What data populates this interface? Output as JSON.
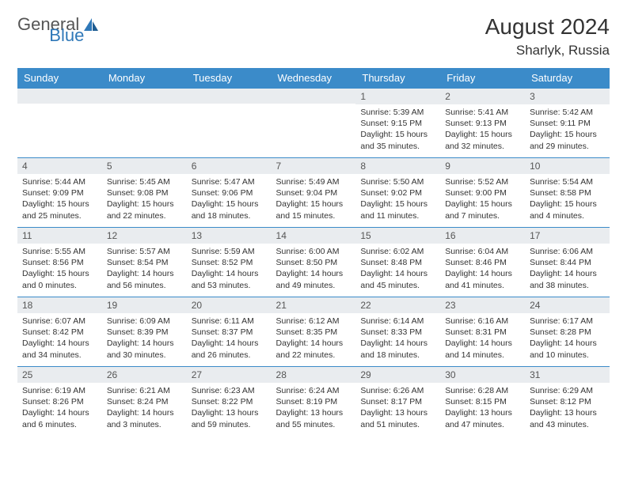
{
  "logo": {
    "text1": "General",
    "text2": "Blue",
    "color1": "#6b6b6b",
    "color2": "#2f78b8"
  },
  "title": "August 2024",
  "location": "Sharlyk, Russia",
  "colors": {
    "header_bg": "#3b8bc9",
    "header_text": "#ffffff",
    "daynum_bg": "#e9ecef",
    "border": "#3b8bc9"
  },
  "fonts": {
    "title_size": 28,
    "location_size": 17,
    "header_size": 13,
    "daynum_size": 12,
    "cell_size": 10.5
  },
  "weekdays": [
    "Sunday",
    "Monday",
    "Tuesday",
    "Wednesday",
    "Thursday",
    "Friday",
    "Saturday"
  ],
  "leading_blanks": 4,
  "days": [
    {
      "n": 1,
      "sr": "5:39 AM",
      "ss": "9:15 PM",
      "dl": "15 hours and 35 minutes."
    },
    {
      "n": 2,
      "sr": "5:41 AM",
      "ss": "9:13 PM",
      "dl": "15 hours and 32 minutes."
    },
    {
      "n": 3,
      "sr": "5:42 AM",
      "ss": "9:11 PM",
      "dl": "15 hours and 29 minutes."
    },
    {
      "n": 4,
      "sr": "5:44 AM",
      "ss": "9:09 PM",
      "dl": "15 hours and 25 minutes."
    },
    {
      "n": 5,
      "sr": "5:45 AM",
      "ss": "9:08 PM",
      "dl": "15 hours and 22 minutes."
    },
    {
      "n": 6,
      "sr": "5:47 AM",
      "ss": "9:06 PM",
      "dl": "15 hours and 18 minutes."
    },
    {
      "n": 7,
      "sr": "5:49 AM",
      "ss": "9:04 PM",
      "dl": "15 hours and 15 minutes."
    },
    {
      "n": 8,
      "sr": "5:50 AM",
      "ss": "9:02 PM",
      "dl": "15 hours and 11 minutes."
    },
    {
      "n": 9,
      "sr": "5:52 AM",
      "ss": "9:00 PM",
      "dl": "15 hours and 7 minutes."
    },
    {
      "n": 10,
      "sr": "5:54 AM",
      "ss": "8:58 PM",
      "dl": "15 hours and 4 minutes."
    },
    {
      "n": 11,
      "sr": "5:55 AM",
      "ss": "8:56 PM",
      "dl": "15 hours and 0 minutes."
    },
    {
      "n": 12,
      "sr": "5:57 AM",
      "ss": "8:54 PM",
      "dl": "14 hours and 56 minutes."
    },
    {
      "n": 13,
      "sr": "5:59 AM",
      "ss": "8:52 PM",
      "dl": "14 hours and 53 minutes."
    },
    {
      "n": 14,
      "sr": "6:00 AM",
      "ss": "8:50 PM",
      "dl": "14 hours and 49 minutes."
    },
    {
      "n": 15,
      "sr": "6:02 AM",
      "ss": "8:48 PM",
      "dl": "14 hours and 45 minutes."
    },
    {
      "n": 16,
      "sr": "6:04 AM",
      "ss": "8:46 PM",
      "dl": "14 hours and 41 minutes."
    },
    {
      "n": 17,
      "sr": "6:06 AM",
      "ss": "8:44 PM",
      "dl": "14 hours and 38 minutes."
    },
    {
      "n": 18,
      "sr": "6:07 AM",
      "ss": "8:42 PM",
      "dl": "14 hours and 34 minutes."
    },
    {
      "n": 19,
      "sr": "6:09 AM",
      "ss": "8:39 PM",
      "dl": "14 hours and 30 minutes."
    },
    {
      "n": 20,
      "sr": "6:11 AM",
      "ss": "8:37 PM",
      "dl": "14 hours and 26 minutes."
    },
    {
      "n": 21,
      "sr": "6:12 AM",
      "ss": "8:35 PM",
      "dl": "14 hours and 22 minutes."
    },
    {
      "n": 22,
      "sr": "6:14 AM",
      "ss": "8:33 PM",
      "dl": "14 hours and 18 minutes."
    },
    {
      "n": 23,
      "sr": "6:16 AM",
      "ss": "8:31 PM",
      "dl": "14 hours and 14 minutes."
    },
    {
      "n": 24,
      "sr": "6:17 AM",
      "ss": "8:28 PM",
      "dl": "14 hours and 10 minutes."
    },
    {
      "n": 25,
      "sr": "6:19 AM",
      "ss": "8:26 PM",
      "dl": "14 hours and 6 minutes."
    },
    {
      "n": 26,
      "sr": "6:21 AM",
      "ss": "8:24 PM",
      "dl": "14 hours and 3 minutes."
    },
    {
      "n": 27,
      "sr": "6:23 AM",
      "ss": "8:22 PM",
      "dl": "13 hours and 59 minutes."
    },
    {
      "n": 28,
      "sr": "6:24 AM",
      "ss": "8:19 PM",
      "dl": "13 hours and 55 minutes."
    },
    {
      "n": 29,
      "sr": "6:26 AM",
      "ss": "8:17 PM",
      "dl": "13 hours and 51 minutes."
    },
    {
      "n": 30,
      "sr": "6:28 AM",
      "ss": "8:15 PM",
      "dl": "13 hours and 47 minutes."
    },
    {
      "n": 31,
      "sr": "6:29 AM",
      "ss": "8:12 PM",
      "dl": "13 hours and 43 minutes."
    }
  ],
  "labels": {
    "sunrise": "Sunrise:",
    "sunset": "Sunset:",
    "daylight": "Daylight:"
  }
}
